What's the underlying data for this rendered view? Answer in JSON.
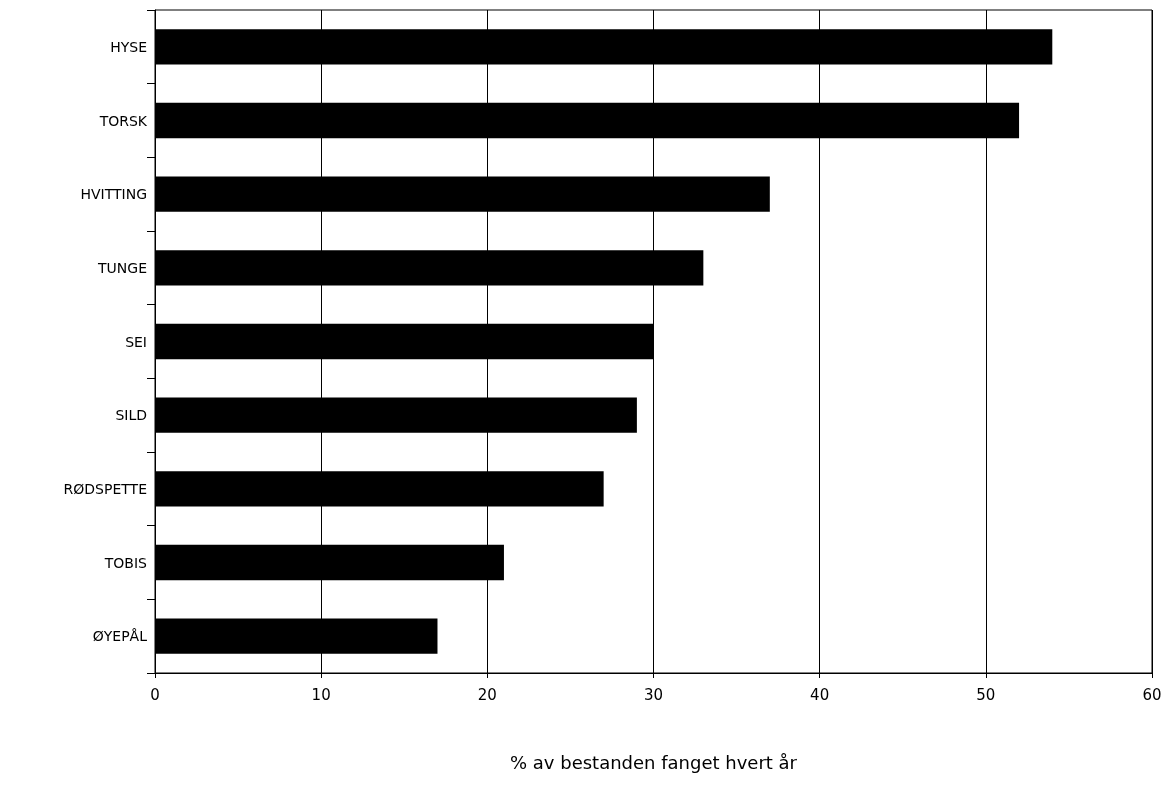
{
  "chart_data": {
    "type": "bar",
    "orientation": "horizontal",
    "xlabel": "% av bestanden fanget hvert år",
    "categories": [
      "HYSE",
      "TORSK",
      "HVITTING",
      "TUNGE",
      "SEI",
      "SILD",
      "RØDSPETTE",
      "TOBIS",
      "ØYEPÅL"
    ],
    "values": [
      54,
      52,
      37,
      33,
      30,
      29,
      27,
      21,
      17
    ],
    "color": "#000000",
    "xlim": [
      0,
      60
    ],
    "xticks": [
      0,
      10,
      20,
      30,
      40,
      50,
      60
    ],
    "grid": "x"
  }
}
